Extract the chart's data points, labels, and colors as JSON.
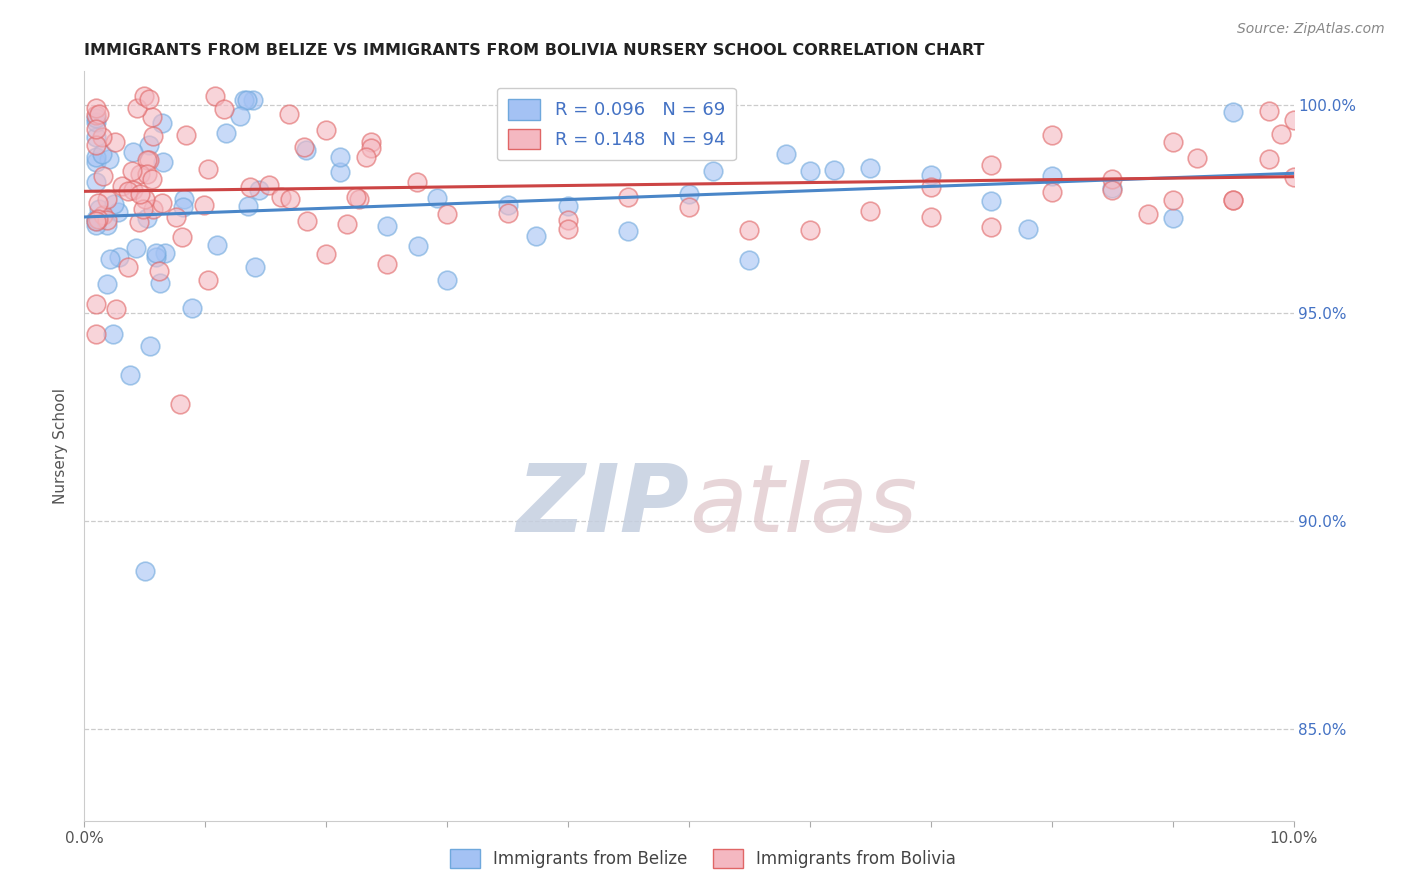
{
  "title": "IMMIGRANTS FROM BELIZE VS IMMIGRANTS FROM BOLIVIA NURSERY SCHOOL CORRELATION CHART",
  "source": "Source: ZipAtlas.com",
  "ylabel": "Nursery School",
  "xlim": [
    0.0,
    0.1
  ],
  "ylim": [
    0.828,
    1.008
  ],
  "ytick_positions": [
    0.85,
    0.9,
    0.95,
    1.0
  ],
  "ytick_labels_right": [
    "85.0%",
    "90.0%",
    "95.0%",
    "100.0%"
  ],
  "belize_color": "#a4c2f4",
  "bolivia_color": "#f4b8c1",
  "belize_edge_color": "#6fa8dc",
  "bolivia_edge_color": "#e06666",
  "belize_line_color": "#4a86c8",
  "bolivia_line_color": "#cc4444",
  "belize_R": 0.096,
  "belize_N": 69,
  "bolivia_R": 0.148,
  "bolivia_N": 94,
  "legend_label_belize": "Immigrants from Belize",
  "legend_label_bolivia": "Immigrants from Bolivia",
  "watermark": "ZIPatlas",
  "watermark_zip_color": "#d0d8e8",
  "watermark_atlas_color": "#d8c8c8",
  "title_color": "#222222",
  "source_color": "#888888",
  "right_tick_color": "#4472c4",
  "grid_color": "#cccccc",
  "legend_text_color": "#4472c4"
}
